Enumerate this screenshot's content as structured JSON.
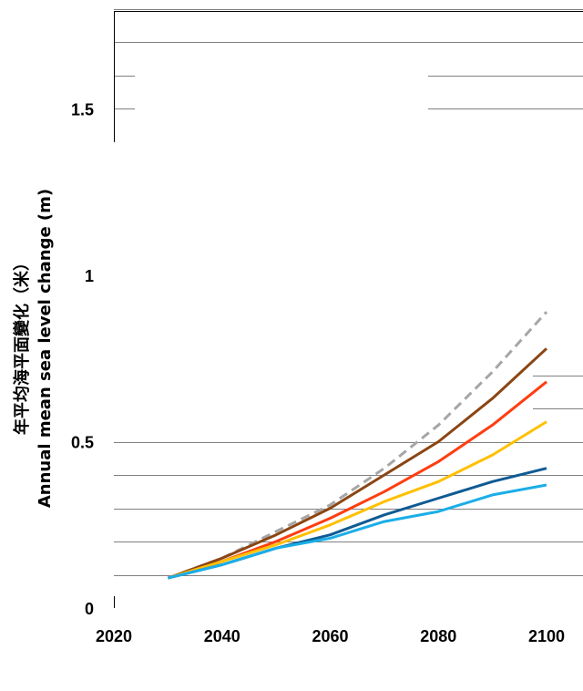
{
  "chart_data": {
    "type": "line",
    "title": "",
    "ylabel_zh": "年平均海平面變化（米）",
    "ylabel_en": "Annual mean sea level change (m)",
    "xlabel": "",
    "x": [
      2030,
      2040,
      2050,
      2060,
      2070,
      2080,
      2090,
      2100
    ],
    "xlim": [
      2020,
      2110
    ],
    "ylim": [
      0,
      1.8
    ],
    "x_ticks": [
      "2020",
      "2040",
      "2060",
      "2080",
      "2100"
    ],
    "y_ticks": [
      "0",
      "0.5",
      "1",
      "1.5"
    ],
    "grid": true,
    "series": [
      {
        "style": "dashed",
        "color": "#a6a6a6",
        "values": [
          0.09,
          0.15,
          0.23,
          0.31,
          0.42,
          0.55,
          0.71,
          0.89
        ]
      },
      {
        "color": "#8b4513",
        "values": [
          0.09,
          0.15,
          0.22,
          0.3,
          0.4,
          0.5,
          0.63,
          0.78
        ]
      },
      {
        "color": "#ff3d10",
        "values": [
          0.09,
          0.14,
          0.2,
          0.27,
          0.35,
          0.44,
          0.55,
          0.68
        ]
      },
      {
        "color": "#ffc000",
        "values": [
          0.09,
          0.14,
          0.19,
          0.25,
          0.32,
          0.38,
          0.46,
          0.56
        ]
      },
      {
        "color": "#0f5b94",
        "values": [
          0.09,
          0.13,
          0.18,
          0.22,
          0.28,
          0.33,
          0.38,
          0.42
        ]
      },
      {
        "color": "#1aaee8",
        "values": [
          0.09,
          0.13,
          0.18,
          0.21,
          0.26,
          0.29,
          0.34,
          0.37
        ]
      }
    ]
  }
}
